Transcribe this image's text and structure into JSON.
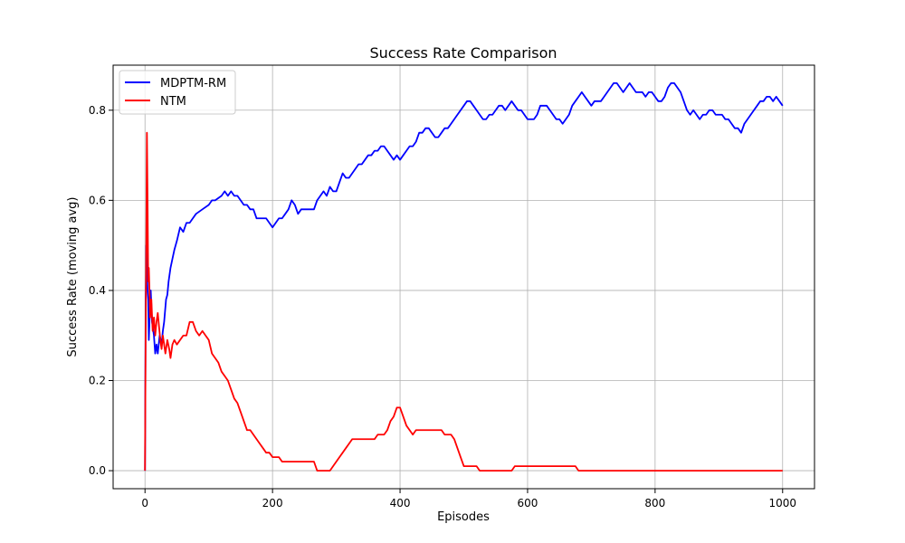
{
  "chart_data": {
    "type": "line",
    "title": "Success Rate Comparison",
    "xlabel": "Episodes",
    "ylabel": "Success Rate (moving avg)",
    "xlim": [
      -50,
      1050
    ],
    "ylim": [
      -0.04,
      0.9
    ],
    "xticks": [
      0,
      200,
      400,
      600,
      800,
      1000
    ],
    "xtick_labels": [
      "0",
      "200",
      "400",
      "600",
      "800",
      "1000"
    ],
    "yticks": [
      0.0,
      0.2,
      0.4,
      0.6,
      0.8
    ],
    "ytick_labels": [
      "0.0",
      "0.2",
      "0.4",
      "0.6",
      "0.8"
    ],
    "grid": true,
    "legend_position": "top-left",
    "series": [
      {
        "name": "MDPTM-RM",
        "color": "#0000ff",
        "points": [
          [
            0,
            0.0
          ],
          [
            1,
            0.35
          ],
          [
            2,
            0.5
          ],
          [
            3,
            0.45
          ],
          [
            4,
            0.4
          ],
          [
            5,
            0.38
          ],
          [
            6,
            0.29
          ],
          [
            7,
            0.33
          ],
          [
            9,
            0.4
          ],
          [
            11,
            0.33
          ],
          [
            14,
            0.3
          ],
          [
            16,
            0.26
          ],
          [
            18,
            0.28
          ],
          [
            20,
            0.26
          ],
          [
            23,
            0.3
          ],
          [
            26,
            0.28
          ],
          [
            28,
            0.31
          ],
          [
            30,
            0.33
          ],
          [
            33,
            0.38
          ],
          [
            35,
            0.39
          ],
          [
            37,
            0.42
          ],
          [
            40,
            0.45
          ],
          [
            43,
            0.47
          ],
          [
            46,
            0.49
          ],
          [
            50,
            0.51
          ],
          [
            55,
            0.54
          ],
          [
            60,
            0.53
          ],
          [
            65,
            0.55
          ],
          [
            70,
            0.55
          ],
          [
            75,
            0.56
          ],
          [
            80,
            0.57
          ],
          [
            90,
            0.58
          ],
          [
            100,
            0.59
          ],
          [
            105,
            0.6
          ],
          [
            110,
            0.6
          ],
          [
            120,
            0.61
          ],
          [
            125,
            0.62
          ],
          [
            130,
            0.61
          ],
          [
            135,
            0.62
          ],
          [
            140,
            0.61
          ],
          [
            145,
            0.61
          ],
          [
            150,
            0.6
          ],
          [
            155,
            0.59
          ],
          [
            160,
            0.59
          ],
          [
            165,
            0.58
          ],
          [
            170,
            0.58
          ],
          [
            175,
            0.56
          ],
          [
            180,
            0.56
          ],
          [
            185,
            0.56
          ],
          [
            190,
            0.56
          ],
          [
            195,
            0.55
          ],
          [
            200,
            0.54
          ],
          [
            205,
            0.55
          ],
          [
            210,
            0.56
          ],
          [
            215,
            0.56
          ],
          [
            220,
            0.57
          ],
          [
            225,
            0.58
          ],
          [
            230,
            0.6
          ],
          [
            235,
            0.59
          ],
          [
            240,
            0.57
          ],
          [
            245,
            0.58
          ],
          [
            250,
            0.58
          ],
          [
            255,
            0.58
          ],
          [
            260,
            0.58
          ],
          [
            265,
            0.58
          ],
          [
            270,
            0.6
          ],
          [
            275,
            0.61
          ],
          [
            280,
            0.62
          ],
          [
            285,
            0.61
          ],
          [
            290,
            0.63
          ],
          [
            295,
            0.62
          ],
          [
            300,
            0.62
          ],
          [
            305,
            0.64
          ],
          [
            310,
            0.66
          ],
          [
            315,
            0.65
          ],
          [
            320,
            0.65
          ],
          [
            325,
            0.66
          ],
          [
            330,
            0.67
          ],
          [
            335,
            0.68
          ],
          [
            340,
            0.68
          ],
          [
            345,
            0.69
          ],
          [
            350,
            0.7
          ],
          [
            355,
            0.7
          ],
          [
            360,
            0.71
          ],
          [
            365,
            0.71
          ],
          [
            370,
            0.72
          ],
          [
            375,
            0.72
          ],
          [
            380,
            0.71
          ],
          [
            385,
            0.7
          ],
          [
            390,
            0.69
          ],
          [
            395,
            0.7
          ],
          [
            400,
            0.69
          ],
          [
            405,
            0.7
          ],
          [
            410,
            0.71
          ],
          [
            415,
            0.72
          ],
          [
            420,
            0.72
          ],
          [
            425,
            0.73
          ],
          [
            430,
            0.75
          ],
          [
            435,
            0.75
          ],
          [
            440,
            0.76
          ],
          [
            445,
            0.76
          ],
          [
            450,
            0.75
          ],
          [
            455,
            0.74
          ],
          [
            460,
            0.74
          ],
          [
            465,
            0.75
          ],
          [
            470,
            0.76
          ],
          [
            475,
            0.76
          ],
          [
            480,
            0.77
          ],
          [
            485,
            0.78
          ],
          [
            490,
            0.79
          ],
          [
            495,
            0.8
          ],
          [
            500,
            0.81
          ],
          [
            505,
            0.82
          ],
          [
            510,
            0.82
          ],
          [
            515,
            0.81
          ],
          [
            520,
            0.8
          ],
          [
            525,
            0.79
          ],
          [
            530,
            0.78
          ],
          [
            535,
            0.78
          ],
          [
            540,
            0.79
          ],
          [
            545,
            0.79
          ],
          [
            550,
            0.8
          ],
          [
            555,
            0.81
          ],
          [
            560,
            0.81
          ],
          [
            565,
            0.8
          ],
          [
            570,
            0.81
          ],
          [
            575,
            0.82
          ],
          [
            580,
            0.81
          ],
          [
            585,
            0.8
          ],
          [
            590,
            0.8
          ],
          [
            595,
            0.79
          ],
          [
            600,
            0.78
          ],
          [
            605,
            0.78
          ],
          [
            610,
            0.78
          ],
          [
            615,
            0.79
          ],
          [
            620,
            0.81
          ],
          [
            625,
            0.81
          ],
          [
            630,
            0.81
          ],
          [
            635,
            0.8
          ],
          [
            640,
            0.79
          ],
          [
            645,
            0.78
          ],
          [
            650,
            0.78
          ],
          [
            655,
            0.77
          ],
          [
            660,
            0.78
          ],
          [
            665,
            0.79
          ],
          [
            670,
            0.81
          ],
          [
            675,
            0.82
          ],
          [
            680,
            0.83
          ],
          [
            685,
            0.84
          ],
          [
            690,
            0.83
          ],
          [
            695,
            0.82
          ],
          [
            700,
            0.81
          ],
          [
            705,
            0.82
          ],
          [
            710,
            0.82
          ],
          [
            715,
            0.82
          ],
          [
            720,
            0.83
          ],
          [
            725,
            0.84
          ],
          [
            730,
            0.85
          ],
          [
            735,
            0.86
          ],
          [
            740,
            0.86
          ],
          [
            745,
            0.85
          ],
          [
            750,
            0.84
          ],
          [
            755,
            0.85
          ],
          [
            760,
            0.86
          ],
          [
            765,
            0.85
          ],
          [
            770,
            0.84
          ],
          [
            775,
            0.84
          ],
          [
            780,
            0.84
          ],
          [
            785,
            0.83
          ],
          [
            790,
            0.84
          ],
          [
            795,
            0.84
          ],
          [
            800,
            0.83
          ],
          [
            805,
            0.82
          ],
          [
            810,
            0.82
          ],
          [
            815,
            0.83
          ],
          [
            820,
            0.85
          ],
          [
            825,
            0.86
          ],
          [
            830,
            0.86
          ],
          [
            835,
            0.85
          ],
          [
            840,
            0.84
          ],
          [
            845,
            0.82
          ],
          [
            850,
            0.8
          ],
          [
            855,
            0.79
          ],
          [
            860,
            0.8
          ],
          [
            865,
            0.79
          ],
          [
            870,
            0.78
          ],
          [
            875,
            0.79
          ],
          [
            880,
            0.79
          ],
          [
            885,
            0.8
          ],
          [
            890,
            0.8
          ],
          [
            895,
            0.79
          ],
          [
            900,
            0.79
          ],
          [
            905,
            0.79
          ],
          [
            910,
            0.78
          ],
          [
            915,
            0.78
          ],
          [
            920,
            0.77
          ],
          [
            925,
            0.76
          ],
          [
            930,
            0.76
          ],
          [
            935,
            0.75
          ],
          [
            940,
            0.77
          ],
          [
            945,
            0.78
          ],
          [
            950,
            0.79
          ],
          [
            955,
            0.8
          ],
          [
            960,
            0.81
          ],
          [
            965,
            0.82
          ],
          [
            970,
            0.82
          ],
          [
            975,
            0.83
          ],
          [
            980,
            0.83
          ],
          [
            985,
            0.82
          ],
          [
            990,
            0.83
          ],
          [
            995,
            0.82
          ],
          [
            1000,
            0.81
          ]
        ]
      },
      {
        "name": "NTM",
        "color": "#ff0000",
        "points": [
          [
            0,
            0.0
          ],
          [
            1,
            0.3
          ],
          [
            2,
            0.5
          ],
          [
            3,
            0.75
          ],
          [
            4,
            0.6
          ],
          [
            5,
            0.42
          ],
          [
            6,
            0.45
          ],
          [
            7,
            0.4
          ],
          [
            8,
            0.34
          ],
          [
            10,
            0.38
          ],
          [
            12,
            0.31
          ],
          [
            14,
            0.34
          ],
          [
            16,
            0.3
          ],
          [
            18,
            0.33
          ],
          [
            20,
            0.35
          ],
          [
            22,
            0.32
          ],
          [
            24,
            0.29
          ],
          [
            26,
            0.27
          ],
          [
            28,
            0.3
          ],
          [
            30,
            0.28
          ],
          [
            32,
            0.26
          ],
          [
            35,
            0.29
          ],
          [
            38,
            0.27
          ],
          [
            40,
            0.25
          ],
          [
            43,
            0.28
          ],
          [
            46,
            0.29
          ],
          [
            50,
            0.28
          ],
          [
            55,
            0.29
          ],
          [
            60,
            0.3
          ],
          [
            65,
            0.3
          ],
          [
            70,
            0.33
          ],
          [
            75,
            0.33
          ],
          [
            80,
            0.31
          ],
          [
            85,
            0.3
          ],
          [
            90,
            0.31
          ],
          [
            95,
            0.3
          ],
          [
            100,
            0.29
          ],
          [
            105,
            0.26
          ],
          [
            110,
            0.25
          ],
          [
            115,
            0.24
          ],
          [
            120,
            0.22
          ],
          [
            125,
            0.21
          ],
          [
            130,
            0.2
          ],
          [
            135,
            0.18
          ],
          [
            140,
            0.16
          ],
          [
            145,
            0.15
          ],
          [
            150,
            0.13
          ],
          [
            155,
            0.11
          ],
          [
            160,
            0.09
          ],
          [
            165,
            0.09
          ],
          [
            170,
            0.08
          ],
          [
            175,
            0.07
          ],
          [
            180,
            0.06
          ],
          [
            185,
            0.05
          ],
          [
            190,
            0.04
          ],
          [
            195,
            0.04
          ],
          [
            200,
            0.03
          ],
          [
            210,
            0.03
          ],
          [
            215,
            0.02
          ],
          [
            230,
            0.02
          ],
          [
            265,
            0.02
          ],
          [
            270,
            0.0
          ],
          [
            290,
            0.0
          ],
          [
            295,
            0.01
          ],
          [
            300,
            0.02
          ],
          [
            305,
            0.03
          ],
          [
            310,
            0.04
          ],
          [
            315,
            0.05
          ],
          [
            320,
            0.06
          ],
          [
            325,
            0.07
          ],
          [
            330,
            0.07
          ],
          [
            340,
            0.07
          ],
          [
            350,
            0.07
          ],
          [
            360,
            0.07
          ],
          [
            365,
            0.08
          ],
          [
            375,
            0.08
          ],
          [
            380,
            0.09
          ],
          [
            385,
            0.11
          ],
          [
            390,
            0.12
          ],
          [
            395,
            0.14
          ],
          [
            400,
            0.14
          ],
          [
            405,
            0.12
          ],
          [
            410,
            0.1
          ],
          [
            415,
            0.09
          ],
          [
            420,
            0.08
          ],
          [
            425,
            0.09
          ],
          [
            430,
            0.09
          ],
          [
            440,
            0.09
          ],
          [
            450,
            0.09
          ],
          [
            460,
            0.09
          ],
          [
            465,
            0.09
          ],
          [
            470,
            0.08
          ],
          [
            480,
            0.08
          ],
          [
            485,
            0.07
          ],
          [
            490,
            0.05
          ],
          [
            495,
            0.03
          ],
          [
            500,
            0.01
          ],
          [
            510,
            0.01
          ],
          [
            520,
            0.01
          ],
          [
            525,
            0.0
          ],
          [
            540,
            0.0
          ],
          [
            560,
            0.0
          ],
          [
            575,
            0.0
          ],
          [
            580,
            0.01
          ],
          [
            600,
            0.01
          ],
          [
            640,
            0.01
          ],
          [
            670,
            0.01
          ],
          [
            675,
            0.01
          ],
          [
            680,
            0.0
          ],
          [
            700,
            0.0
          ],
          [
            800,
            0.0
          ],
          [
            900,
            0.0
          ],
          [
            1000,
            0.0
          ]
        ]
      }
    ]
  }
}
